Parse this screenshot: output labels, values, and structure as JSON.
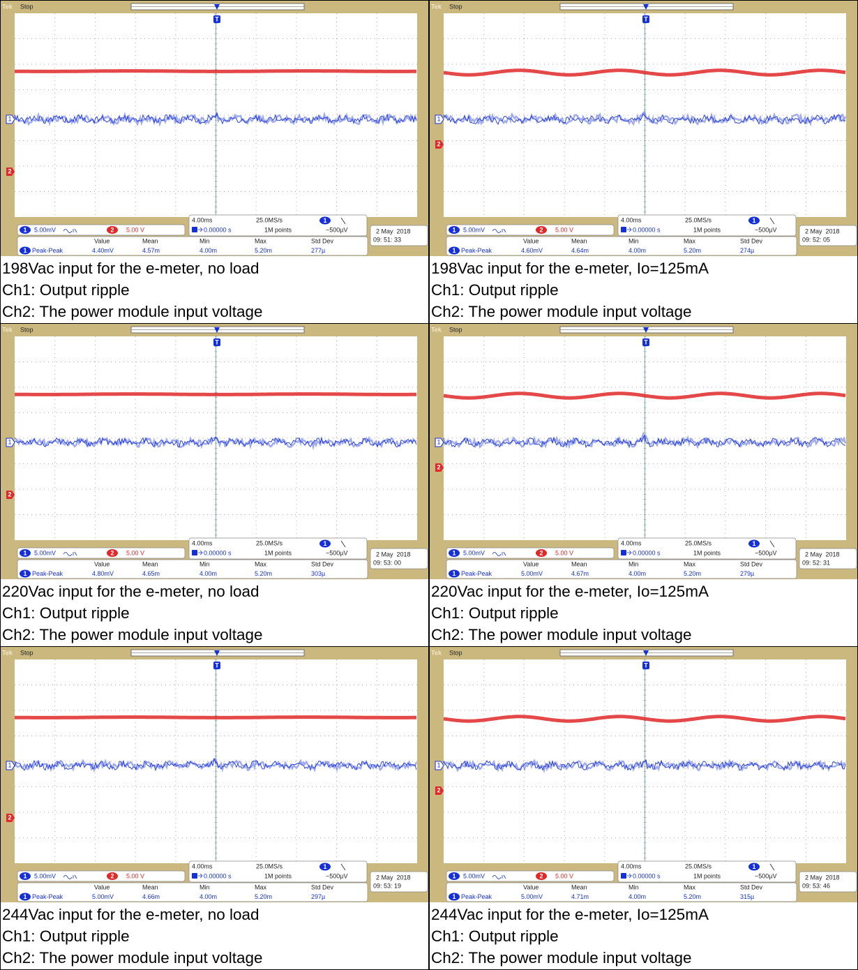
{
  "panels": [
    {
      "scope": {
        "brand": "Tek",
        "state": "Stop",
        "trigger_marker": "T",
        "ch1": {
          "badge": "1",
          "scale": "5.00mV"
        },
        "ch2": {
          "badge": "2",
          "scale": "5.00 V"
        },
        "timebase": "4.00ms",
        "sample_rate": "25.0MS/s",
        "record": "1M points",
        "trigger_pos": "0.00000 s",
        "trigger_level": "−500µV",
        "date": "2 May  2018",
        "time": "09: 51: 33",
        "measure": {
          "headers": [
            "Value",
            "Mean",
            "Min",
            "Max",
            "Std Dev"
          ],
          "name": "Peak-Peak",
          "values": [
            "4.40mV",
            "4.57m",
            "4.00m",
            "5.20m",
            "277µ"
          ]
        }
      },
      "caption": [
        "198Vac input for the e-meter, no load",
        "Ch1: Output ripple",
        "Ch2: The power module input voltage"
      ]
    },
    {
      "scope": {
        "brand": "Tek",
        "state": "Stop",
        "trigger_marker": "T",
        "ch1": {
          "badge": "1",
          "scale": "5.00mV"
        },
        "ch2": {
          "badge": "2",
          "scale": "5.00 V"
        },
        "timebase": "4.00ms",
        "sample_rate": "25.0MS/s",
        "record": "1M points",
        "trigger_pos": "0.00000 s",
        "trigger_level": "−500µV",
        "date": "2 May  2018",
        "time": "09: 52: 05",
        "measure": {
          "headers": [
            "Value",
            "Mean",
            "Min",
            "Max",
            "Std Dev"
          ],
          "name": "Peak-Peak",
          "values": [
            "4.60mV",
            "4.64m",
            "4.00m",
            "5.20m",
            "274µ"
          ]
        }
      },
      "caption": [
        "198Vac input for the e-meter, Io=125mA",
        "Ch1: Output ripple",
        "Ch2: The power module input voltage"
      ]
    },
    {
      "scope": {
        "brand": "Tek",
        "state": "Stop",
        "trigger_marker": "T",
        "ch1": {
          "badge": "1",
          "scale": "5.00mV"
        },
        "ch2": {
          "badge": "2",
          "scale": "5.00 V"
        },
        "timebase": "4.00ms",
        "sample_rate": "25.0MS/s",
        "record": "1M points",
        "trigger_pos": "0.00000 s",
        "trigger_level": "−500µV",
        "date": "2 May  2018",
        "time": "09: 53: 00",
        "measure": {
          "headers": [
            "Value",
            "Mean",
            "Min",
            "Max",
            "Std Dev"
          ],
          "name": "Peak-Peak",
          "values": [
            "4.80mV",
            "4.65m",
            "4.00m",
            "5.20m",
            "303µ"
          ]
        }
      },
      "caption": [
        "220Vac input for the e-meter, no load",
        "Ch1: Output ripple",
        "Ch2: The power module input voltage"
      ]
    },
    {
      "scope": {
        "brand": "Tek",
        "state": "Stop",
        "trigger_marker": "T",
        "ch1": {
          "badge": "1",
          "scale": "5.00mV"
        },
        "ch2": {
          "badge": "2",
          "scale": "5.00 V"
        },
        "timebase": "4.00ms",
        "sample_rate": "25.0MS/s",
        "record": "1M points",
        "trigger_pos": "0.00000 s",
        "trigger_level": "−500µV",
        "date": "2 May  2018",
        "time": "09: 52: 31",
        "measure": {
          "headers": [
            "Value",
            "Mean",
            "Min",
            "Max",
            "Std Dev"
          ],
          "name": "Peak-Peak",
          "values": [
            "5.00mV",
            "4.67m",
            "4.00m",
            "5.20m",
            "279µ"
          ]
        }
      },
      "caption": [
        "220Vac input for the e-meter, Io=125mA",
        "Ch1: Output ripple",
        "Ch2: The power module input voltage"
      ]
    },
    {
      "scope": {
        "brand": "Tek",
        "state": "Stop",
        "trigger_marker": "T",
        "ch1": {
          "badge": "1",
          "scale": "5.00mV"
        },
        "ch2": {
          "badge": "2",
          "scale": "5.00 V"
        },
        "timebase": "4.00ms",
        "sample_rate": "25.0MS/s",
        "record": "1M points",
        "trigger_pos": "0.00000 s",
        "trigger_level": "−500µV",
        "date": "2 May  2018",
        "time": "09: 53: 19",
        "measure": {
          "headers": [
            "Value",
            "Mean",
            "Min",
            "Max",
            "Std Dev"
          ],
          "name": "Peak-Peak",
          "values": [
            "5.00mV",
            "4.66m",
            "4.00m",
            "5.20m",
            "297µ"
          ]
        }
      },
      "caption": [
        "244Vac input for the e-meter, no load",
        "Ch1: Output ripple",
        "Ch2: The power module input voltage"
      ]
    },
    {
      "scope": {
        "brand": "Tek",
        "state": "Stop",
        "trigger_marker": "T",
        "ch1": {
          "badge": "1",
          "scale": "5.00mV"
        },
        "ch2": {
          "badge": "2",
          "scale": "5.00 V"
        },
        "timebase": "4.00ms",
        "sample_rate": "25.0MS/s",
        "record": "1M points",
        "trigger_pos": "0.00000 s",
        "trigger_level": "−500µV",
        "date": "2 May  2018",
        "time": "09: 53: 46",
        "measure": {
          "headers": [
            "Value",
            "Mean",
            "Min",
            "Max",
            "Std Dev"
          ],
          "name": "Peak-Peak",
          "values": [
            "5.00mV",
            "4.71m",
            "4.00m",
            "5.20m",
            "315µ"
          ]
        }
      },
      "caption": [
        "244Vac input for the e-meter, Io=125mA",
        "Ch1: Output ripple",
        "Ch2: The power module input voltage"
      ]
    }
  ]
}
